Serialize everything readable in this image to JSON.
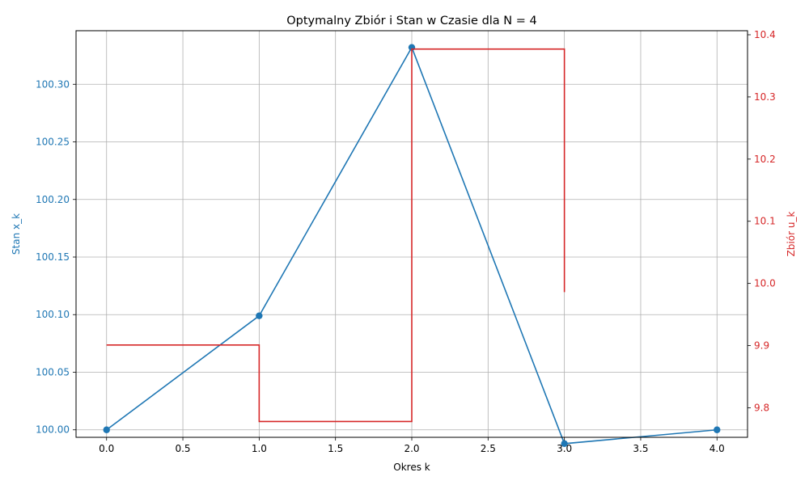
{
  "chart_data": {
    "type": "line",
    "title": "Optymalny Zbiór i Stan w Czasie dla N = 4",
    "xlabel": "Okres k",
    "ylabel_left": "Stan x_k",
    "ylabel_right": "Zbiór u_k",
    "xlim": [
      -0.2,
      4.2
    ],
    "ylim_left": [
      99.9935,
      100.3465
    ],
    "ylim_right": [
      9.7525,
      10.4065
    ],
    "x_ticks": [
      "0.0",
      "0.5",
      "1.0",
      "1.5",
      "2.0",
      "2.5",
      "3.0",
      "3.5",
      "4.0"
    ],
    "y_left_ticks": [
      "100.00",
      "100.05",
      "100.10",
      "100.15",
      "100.20",
      "100.25",
      "100.30"
    ],
    "y_right_ticks": [
      "9.8",
      "9.9",
      "10.0",
      "10.1",
      "10.2",
      "10.3",
      "10.4"
    ],
    "grid": true,
    "colors": {
      "state": "#1f77b4",
      "control": "#d62728",
      "grid": "#b0b0b0"
    },
    "series": [
      {
        "axis": "left",
        "style": "line-markers",
        "x": [
          0,
          1,
          2,
          3,
          4
        ],
        "values": [
          100.0,
          100.099,
          100.332,
          99.988,
          100.0
        ]
      },
      {
        "axis": "right",
        "style": "step-post",
        "x": [
          0,
          1,
          2,
          3
        ],
        "values": [
          9.901,
          9.778,
          10.377,
          9.986
        ]
      }
    ]
  }
}
